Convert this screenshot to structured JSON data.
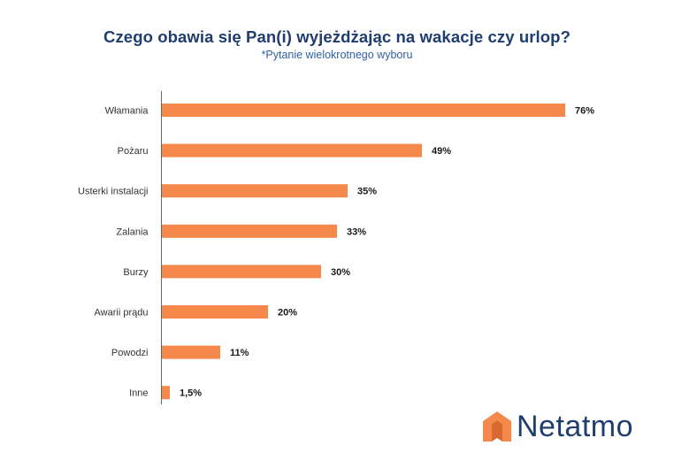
{
  "chart_data": {
    "type": "bar",
    "orientation": "horizontal",
    "title": "Czego obawia się Pan(i) wyjeżdżając na wakacje czy urlop?",
    "subtitle": "*Pytanie wielokrotnego wyboru",
    "categories": [
      "Włamania",
      "Pożaru",
      "Usterki instalacji",
      "Zalania",
      "Burzy",
      "Awarii prądu",
      "Powodzi",
      "Inne"
    ],
    "values": [
      76,
      49,
      35,
      33,
      30,
      20,
      11,
      1.5
    ],
    "value_labels": [
      "76%",
      "49%",
      "35%",
      "33%",
      "30%",
      "20%",
      "11%",
      "1,5%"
    ],
    "bar_color": "#f5894b",
    "axis_color": "#666666",
    "grid": false,
    "legend": "none"
  },
  "brand": {
    "name": "Netatmo",
    "logo_color": "#f5894b",
    "text_color": "#1f3d6e"
  }
}
